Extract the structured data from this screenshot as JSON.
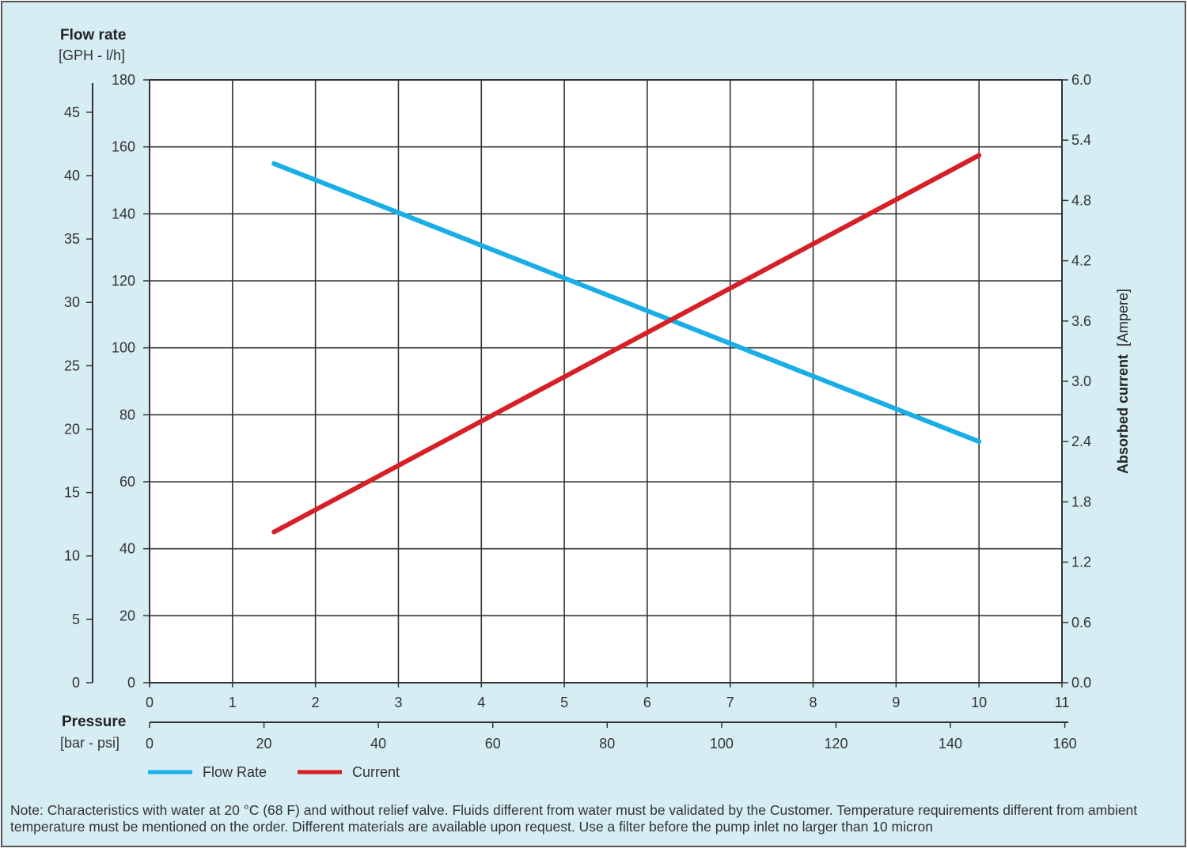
{
  "colors": {
    "background": "#d6edf4",
    "plot_bg": "#ffffff",
    "grid": "#333333",
    "flow": "#1aaee6",
    "current": "#d61f26"
  },
  "left_title": "Flow rate",
  "left_units": "[GPH - l/h]",
  "right_title": "Absorbed current",
  "right_units": "[Ampere]",
  "bottom_title": "Pressure",
  "bottom_units": "[bar - psi]",
  "legend": {
    "flow": "Flow Rate",
    "current": "Current"
  },
  "note": "Note: Characteristics with water at 20 °C (68 F) and without relief valve. Fluids different from water must be validated by the Customer. Temperature requirements different from ambient temperature must be mentioned on the order. Different materials are available upon request. Use a filter before the pump inlet no larger than 10 micron",
  "chart_data": {
    "type": "line",
    "x_axis": {
      "unit": "bar",
      "range": [
        0,
        11
      ],
      "ticks": [
        "0",
        "1",
        "2",
        "3",
        "4",
        "5",
        "6",
        "7",
        "8",
        "9",
        "10",
        "11"
      ]
    },
    "x_axis_secondary": {
      "unit": "psi",
      "range": [
        0,
        159.5
      ],
      "ticks": [
        "0",
        "20",
        "40",
        "60",
        "80",
        "100",
        "120",
        "140",
        "160"
      ]
    },
    "y_axis_lh": {
      "unit": "l/h",
      "range": [
        0,
        180
      ],
      "ticks": [
        "0",
        "20",
        "40",
        "60",
        "80",
        "100",
        "120",
        "140",
        "160",
        "180"
      ]
    },
    "y_axis_gph": {
      "unit": "GPH",
      "range": [
        0,
        47.55
      ],
      "ticks": [
        "0",
        "5",
        "10",
        "15",
        "20",
        "25",
        "30",
        "35",
        "40",
        "45"
      ]
    },
    "y_axis_right": {
      "unit": "Ampere",
      "range": [
        0,
        6.0
      ],
      "ticks": [
        "0.0",
        "0.6",
        "1.2",
        "1.8",
        "2.4",
        "3.0",
        "3.6",
        "4.2",
        "4.8",
        "5.4",
        "6.0"
      ]
    },
    "grid": true,
    "series": [
      {
        "name": "Flow Rate",
        "axis": "lh",
        "x": [
          1.5,
          10
        ],
        "y": [
          155,
          72
        ]
      },
      {
        "name": "Current",
        "axis": "ampere",
        "x": [
          1.5,
          10
        ],
        "y": [
          1.5,
          5.25
        ]
      }
    ]
  }
}
